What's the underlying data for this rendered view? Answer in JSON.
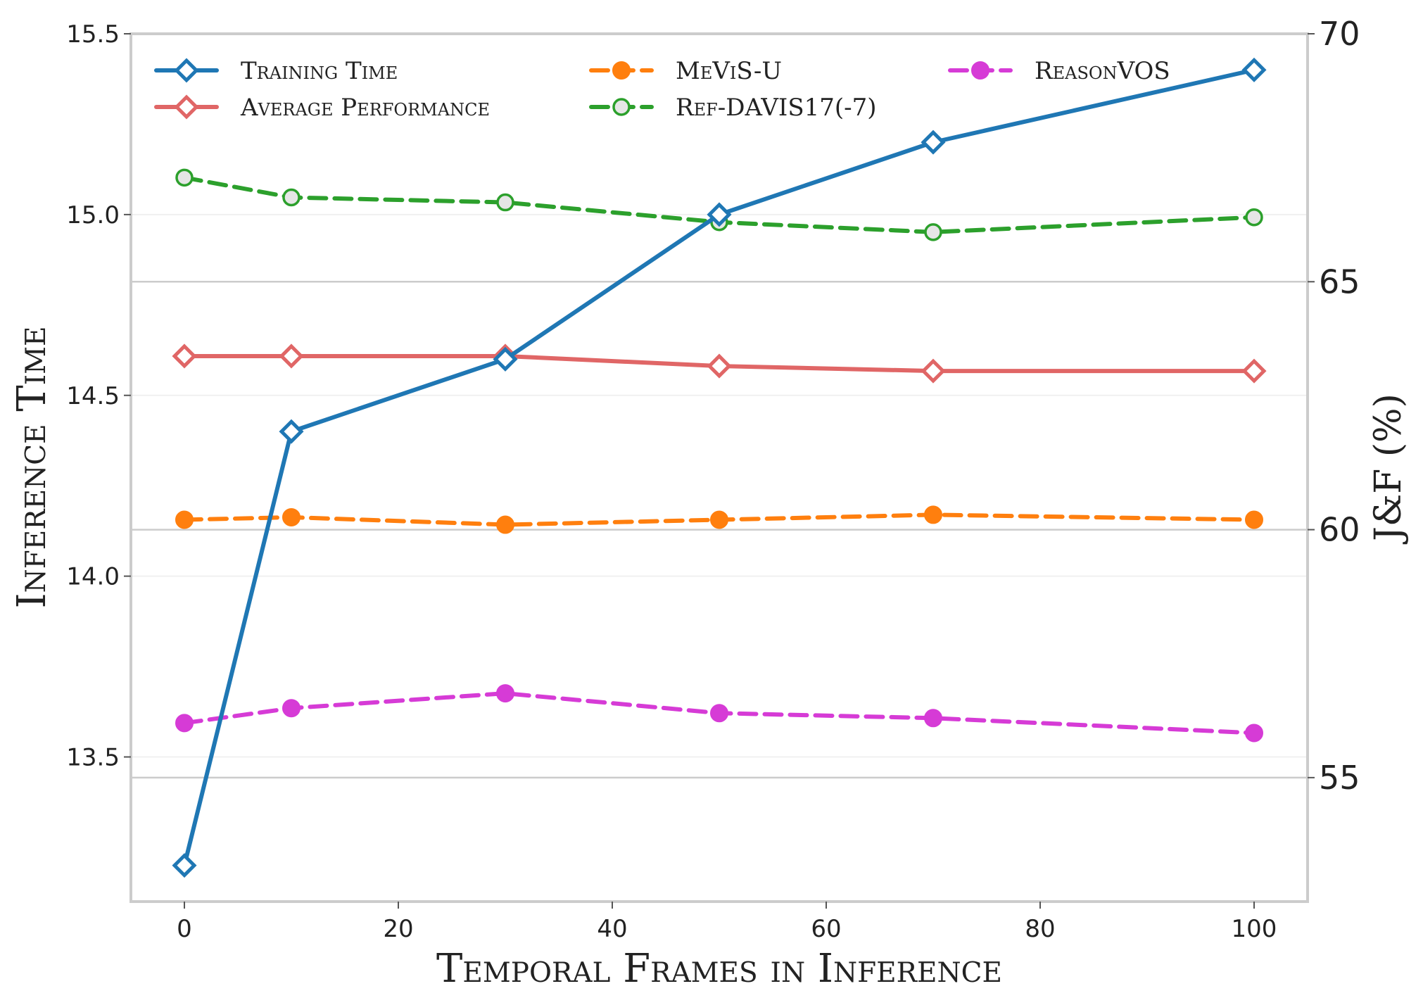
{
  "chart_data": {
    "type": "line",
    "title": "",
    "xlabel": "Temporal Frames in Inference",
    "ylabel": "Inference Time",
    "y2label": "J&F (%)",
    "xlim": [
      -5,
      105
    ],
    "ylim": [
      13.1,
      15.5
    ],
    "y2lim": [
      52.5,
      70
    ],
    "x": [
      0,
      10,
      30,
      50,
      70,
      100
    ],
    "xticks": [
      "0",
      "20",
      "40",
      "60",
      "80",
      "100"
    ],
    "yticks": [
      "13.5",
      "14.0",
      "14.5",
      "15.0",
      "15.5"
    ],
    "y2ticks": [
      "55",
      "60",
      "65",
      "70"
    ],
    "legend_position": "top",
    "series": [
      {
        "name": "Training Time",
        "axis": "left",
        "color": "#1f77b4",
        "style": "solid",
        "marker": "diamond-open",
        "values": [
          13.2,
          14.4,
          14.6,
          15.0,
          15.2,
          15.4
        ]
      },
      {
        "name": "Average Performance",
        "axis": "right",
        "color": "#e06666",
        "style": "solid",
        "marker": "diamond-open",
        "values": [
          63.5,
          63.5,
          63.5,
          63.3,
          63.2,
          63.2
        ]
      },
      {
        "name": "MeViS-U",
        "axis": "right",
        "color": "#ff7f0e",
        "style": "dashed",
        "marker": "circle-filled",
        "values": [
          60.2,
          60.25,
          60.1,
          60.2,
          60.3,
          60.2
        ]
      },
      {
        "name": "Ref-DAVIS17(-7)",
        "axis": "right",
        "color": "#2ca02c",
        "style": "dashed",
        "marker": "circle-open",
        "values": [
          67.1,
          66.7,
          66.6,
          66.2,
          66.0,
          66.3
        ]
      },
      {
        "name": "ReasonVOS",
        "axis": "right",
        "color": "#d63bd6",
        "style": "dashed",
        "marker": "circle-filled",
        "values": [
          56.1,
          56.4,
          56.7,
          56.3,
          56.2,
          55.9
        ]
      }
    ]
  }
}
